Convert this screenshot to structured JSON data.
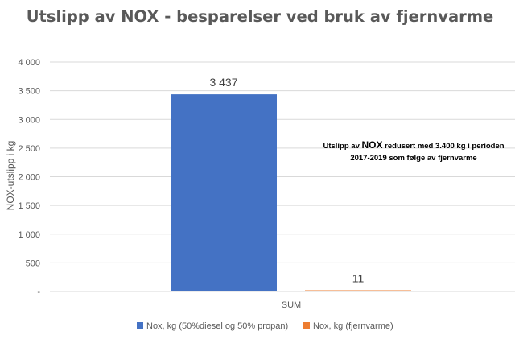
{
  "chart_data": {
    "type": "bar",
    "title": "Utslipp av NOX - besparelser ved bruk av fjernvarme",
    "ylabel": "NOX-utslipp i kg",
    "xlabel": "",
    "categories": [
      "SUM"
    ],
    "series": [
      {
        "name": "Nox, kg (50%diesel og 50% propan)",
        "values": [
          3437
        ],
        "color": "#4472c4",
        "value_label": "3 437"
      },
      {
        "name": "Nox, kg (fjernvarme)",
        "values": [
          11
        ],
        "color": "#ed7d31",
        "value_label": "11"
      }
    ],
    "ylim": [
      0,
      4000
    ],
    "yticks": [
      0,
      500,
      1000,
      1500,
      2000,
      2500,
      3000,
      3500,
      4000
    ],
    "ytick_labels": [
      "-",
      "500",
      "1 000",
      "1 500",
      "2 000",
      "2 500",
      "3 000",
      "3 500",
      "4 000"
    ],
    "grid": true,
    "legend": "bottom",
    "annotation": {
      "line1_prefix": "Utslipp av ",
      "line1_emph": "NOX",
      "line1_suffix": " redusert med 3.400 kg i perioden",
      "line2": "2017-2019 som følge av fjernvarme"
    }
  }
}
